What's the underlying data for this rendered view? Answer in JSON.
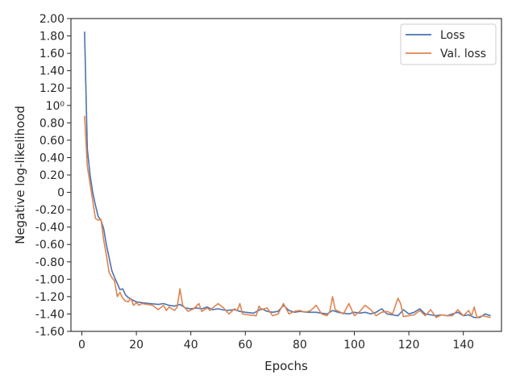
{
  "chart_data": {
    "type": "line",
    "xlabel": "Epochs",
    "ylabel": "Negative log-likelihood",
    "xlim": [
      -4,
      154
    ],
    "ylim": [
      -1.6,
      2.0
    ],
    "xticks": [
      0,
      20,
      40,
      60,
      80,
      100,
      120,
      140
    ],
    "xtick_labels": [
      "0",
      "20",
      "40",
      "60",
      "80",
      "100",
      "120",
      "140"
    ],
    "yticks": [
      2.0,
      1.8,
      1.6,
      1.4,
      1.2,
      1.0,
      0.8,
      0.6,
      0.4,
      0.2,
      0,
      -0.2,
      -0.4,
      -0.6,
      -0.8,
      -1.0,
      -1.2,
      -1.4,
      -1.6
    ],
    "ytick_labels": [
      "2.00",
      "1.80",
      "1.60",
      "1.40",
      "1.20",
      "10⁰",
      "0.80",
      "0.60",
      "0.40",
      "0.20",
      "0",
      "-0.20",
      "-0.40",
      "-0.60",
      "-0.80",
      "-1.00",
      "-1.20",
      "-1.40",
      "-1.60"
    ],
    "grid": false,
    "legend_position": "top-right",
    "series": [
      {
        "name": "Loss",
        "color": "#4c72b0",
        "points": [
          [
            1,
            1.85
          ],
          [
            2,
            0.5
          ],
          [
            3,
            0.2
          ],
          [
            4,
            0.0
          ],
          [
            5,
            -0.15
          ],
          [
            6,
            -0.28
          ],
          [
            7,
            -0.32
          ],
          [
            8,
            -0.42
          ],
          [
            9,
            -0.6
          ],
          [
            10,
            -0.75
          ],
          [
            11,
            -0.9
          ],
          [
            12,
            -0.98
          ],
          [
            13,
            -1.05
          ],
          [
            14,
            -1.12
          ],
          [
            15,
            -1.11
          ],
          [
            16,
            -1.18
          ],
          [
            17,
            -1.21
          ],
          [
            18,
            -1.23
          ],
          [
            20,
            -1.26
          ],
          [
            22,
            -1.27
          ],
          [
            25,
            -1.28
          ],
          [
            28,
            -1.29
          ],
          [
            30,
            -1.28
          ],
          [
            32,
            -1.3
          ],
          [
            34,
            -1.31
          ],
          [
            36,
            -1.29
          ],
          [
            38,
            -1.33
          ],
          [
            40,
            -1.34
          ],
          [
            42,
            -1.33
          ],
          [
            44,
            -1.34
          ],
          [
            46,
            -1.32
          ],
          [
            48,
            -1.35
          ],
          [
            50,
            -1.34
          ],
          [
            53,
            -1.36
          ],
          [
            56,
            -1.35
          ],
          [
            58,
            -1.37
          ],
          [
            60,
            -1.38
          ],
          [
            63,
            -1.39
          ],
          [
            66,
            -1.34
          ],
          [
            68,
            -1.37
          ],
          [
            70,
            -1.38
          ],
          [
            72,
            -1.37
          ],
          [
            74,
            -1.3
          ],
          [
            76,
            -1.36
          ],
          [
            78,
            -1.38
          ],
          [
            80,
            -1.37
          ],
          [
            83,
            -1.38
          ],
          [
            86,
            -1.38
          ],
          [
            88,
            -1.39
          ],
          [
            90,
            -1.4
          ],
          [
            92,
            -1.36
          ],
          [
            94,
            -1.38
          ],
          [
            96,
            -1.39
          ],
          [
            98,
            -1.4
          ],
          [
            100,
            -1.38
          ],
          [
            102,
            -1.39
          ],
          [
            104,
            -1.38
          ],
          [
            106,
            -1.4
          ],
          [
            108,
            -1.38
          ],
          [
            110,
            -1.34
          ],
          [
            112,
            -1.4
          ],
          [
            114,
            -1.41
          ],
          [
            116,
            -1.42
          ],
          [
            118,
            -1.35
          ],
          [
            120,
            -1.4
          ],
          [
            122,
            -1.38
          ],
          [
            124,
            -1.34
          ],
          [
            126,
            -1.4
          ],
          [
            128,
            -1.41
          ],
          [
            130,
            -1.42
          ],
          [
            132,
            -1.41
          ],
          [
            134,
            -1.42
          ],
          [
            136,
            -1.4
          ],
          [
            138,
            -1.38
          ],
          [
            140,
            -1.42
          ],
          [
            142,
            -1.41
          ],
          [
            144,
            -1.44
          ],
          [
            146,
            -1.44
          ],
          [
            148,
            -1.4
          ],
          [
            150,
            -1.42
          ]
        ]
      },
      {
        "name": "Val. loss",
        "color": "#dd8452",
        "points": [
          [
            1,
            0.88
          ],
          [
            2,
            0.3
          ],
          [
            3,
            0.1
          ],
          [
            4,
            -0.1
          ],
          [
            5,
            -0.3
          ],
          [
            6,
            -0.32
          ],
          [
            7,
            -0.31
          ],
          [
            8,
            -0.55
          ],
          [
            9,
            -0.72
          ],
          [
            10,
            -0.92
          ],
          [
            11,
            -0.98
          ],
          [
            12,
            -1.02
          ],
          [
            13,
            -1.2
          ],
          [
            14,
            -1.15
          ],
          [
            15,
            -1.22
          ],
          [
            16,
            -1.25
          ],
          [
            17,
            -1.26
          ],
          [
            18,
            -1.22
          ],
          [
            19,
            -1.3
          ],
          [
            20,
            -1.27
          ],
          [
            21,
            -1.3
          ],
          [
            22,
            -1.28
          ],
          [
            24,
            -1.29
          ],
          [
            26,
            -1.3
          ],
          [
            28,
            -1.35
          ],
          [
            30,
            -1.3
          ],
          [
            31,
            -1.36
          ],
          [
            32,
            -1.32
          ],
          [
            34,
            -1.36
          ],
          [
            35,
            -1.32
          ],
          [
            36,
            -1.11
          ],
          [
            37,
            -1.3
          ],
          [
            39,
            -1.37
          ],
          [
            41,
            -1.34
          ],
          [
            43,
            -1.28
          ],
          [
            44,
            -1.37
          ],
          [
            46,
            -1.33
          ],
          [
            47,
            -1.36
          ],
          [
            48,
            -1.33
          ],
          [
            50,
            -1.28
          ],
          [
            52,
            -1.33
          ],
          [
            54,
            -1.4
          ],
          [
            56,
            -1.34
          ],
          [
            57,
            -1.36
          ],
          [
            58,
            -1.28
          ],
          [
            59,
            -1.4
          ],
          [
            61,
            -1.41
          ],
          [
            64,
            -1.42
          ],
          [
            65,
            -1.31
          ],
          [
            66,
            -1.35
          ],
          [
            68,
            -1.33
          ],
          [
            70,
            -1.42
          ],
          [
            72,
            -1.4
          ],
          [
            74,
            -1.28
          ],
          [
            76,
            -1.4
          ],
          [
            78,
            -1.37
          ],
          [
            80,
            -1.36
          ],
          [
            82,
            -1.38
          ],
          [
            84,
            -1.36
          ],
          [
            86,
            -1.3
          ],
          [
            88,
            -1.4
          ],
          [
            90,
            -1.42
          ],
          [
            91,
            -1.37
          ],
          [
            92,
            -1.2
          ],
          [
            93,
            -1.35
          ],
          [
            95,
            -1.38
          ],
          [
            96,
            -1.4
          ],
          [
            98,
            -1.28
          ],
          [
            100,
            -1.42
          ],
          [
            102,
            -1.37
          ],
          [
            104,
            -1.3
          ],
          [
            106,
            -1.35
          ],
          [
            108,
            -1.42
          ],
          [
            110,
            -1.38
          ],
          [
            112,
            -1.37
          ],
          [
            114,
            -1.4
          ],
          [
            116,
            -1.22
          ],
          [
            117,
            -1.28
          ],
          [
            118,
            -1.43
          ],
          [
            120,
            -1.42
          ],
          [
            122,
            -1.41
          ],
          [
            124,
            -1.36
          ],
          [
            126,
            -1.42
          ],
          [
            128,
            -1.35
          ],
          [
            130,
            -1.44
          ],
          [
            132,
            -1.41
          ],
          [
            134,
            -1.42
          ],
          [
            136,
            -1.42
          ],
          [
            138,
            -1.35
          ],
          [
            140,
            -1.42
          ],
          [
            142,
            -1.36
          ],
          [
            143,
            -1.42
          ],
          [
            144,
            -1.32
          ],
          [
            145,
            -1.44
          ],
          [
            147,
            -1.42
          ],
          [
            150,
            -1.44
          ]
        ]
      }
    ]
  }
}
